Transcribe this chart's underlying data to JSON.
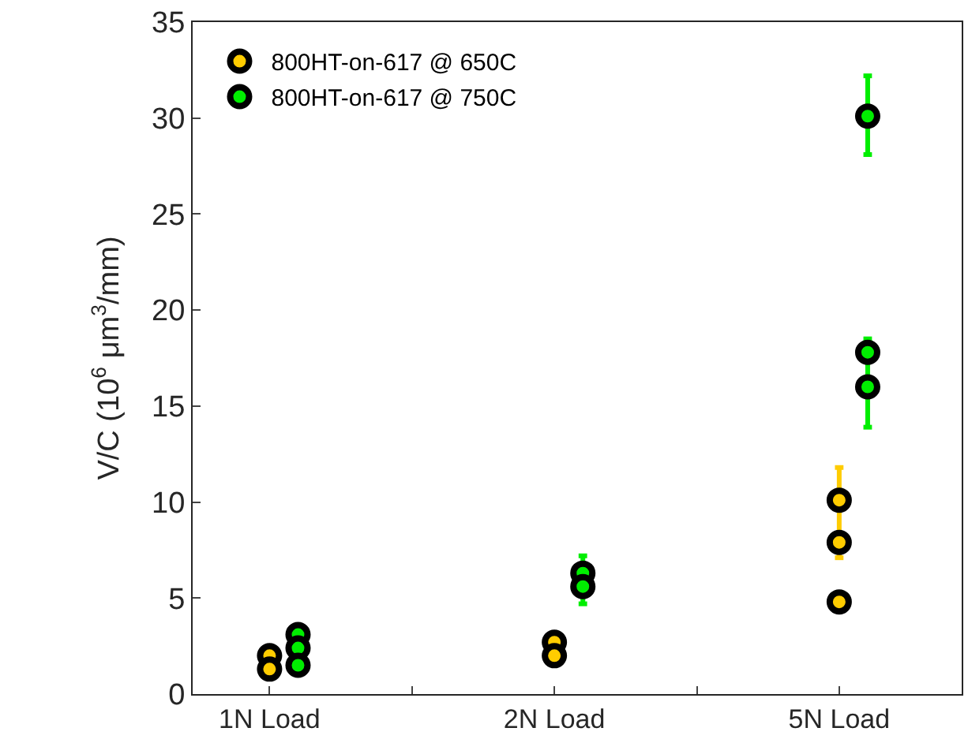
{
  "chart_data": {
    "type": "scatter",
    "ylabel": "V/C (10$^{6}$ μm$^{3}$/mm)",
    "categories": [
      "1N Load",
      "2N Load",
      "5N Load"
    ],
    "ylim": [
      0,
      35
    ],
    "yticks": [
      0,
      5,
      10,
      15,
      20,
      25,
      30,
      35
    ],
    "grid": false,
    "legend": "top left",
    "marker": "circle",
    "series": [
      {
        "name": "800HT-on-617 @ 650C",
        "color": "#ffcc00",
        "x": [
          "1N Load",
          "1N Load",
          "2N Load",
          "2N Load",
          "5N Load",
          "5N Load",
          "5N Load"
        ],
        "values": [
          2.0,
          1.3,
          2.7,
          2.0,
          10.1,
          7.9,
          4.8
        ],
        "errors": [
          null,
          null,
          null,
          null,
          [
            7.1,
            11.8
          ],
          null,
          null
        ]
      },
      {
        "name": "800HT-on-617 @ 750C",
        "color": "#00ee00",
        "x": [
          "1N Load",
          "1N Load",
          "1N Load",
          "2N Load",
          "2N Load",
          "5N Load",
          "5N Load",
          "5N Load"
        ],
        "values": [
          3.1,
          2.4,
          1.5,
          6.3,
          5.6,
          30.1,
          17.8,
          16.0
        ],
        "errors": [
          null,
          null,
          null,
          null,
          [
            4.7,
            7.2
          ],
          [
            28.1,
            32.2
          ],
          null,
          [
            13.9,
            18.5
          ]
        ]
      }
    ]
  }
}
